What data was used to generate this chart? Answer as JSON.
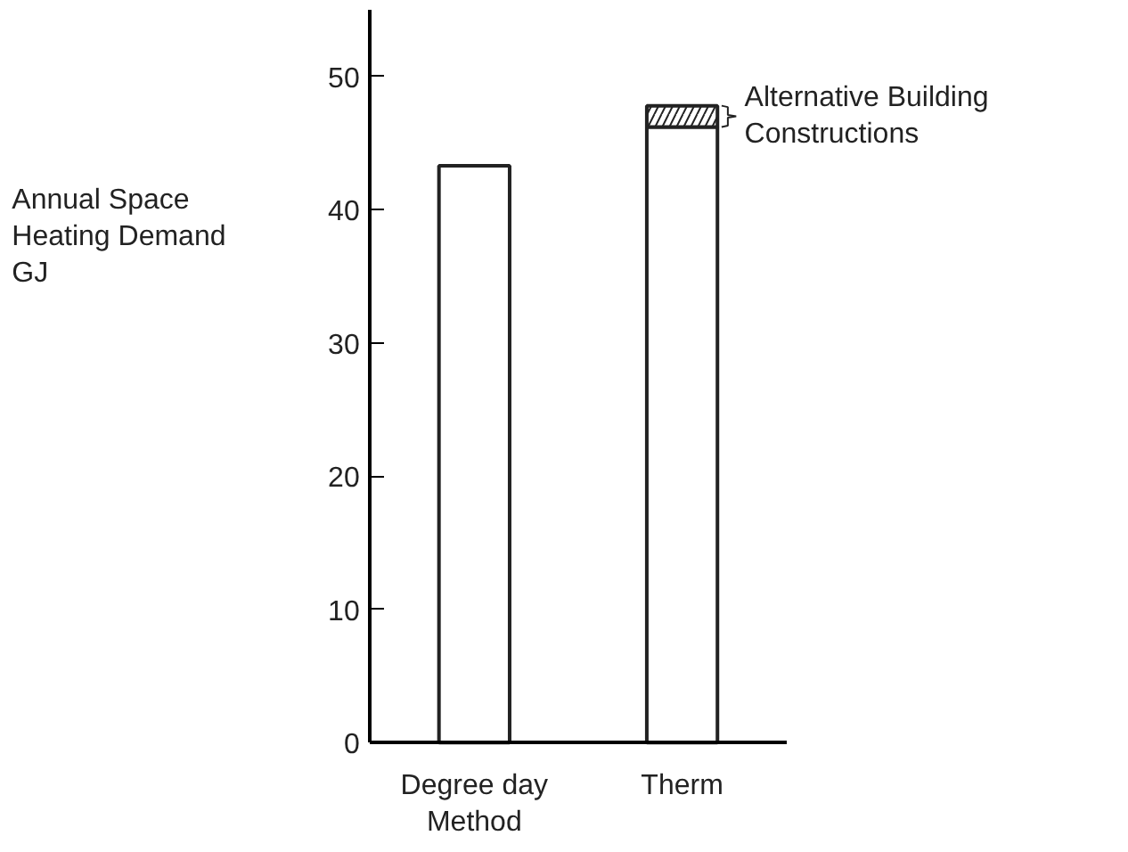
{
  "chart_data": {
    "type": "bar",
    "ylabel": "Annual Space\nHeating Demand\nGJ",
    "categories": [
      "Degree day\nMethod",
      "Therm"
    ],
    "stacked": true,
    "series": [
      {
        "color": "#ffffff",
        "values": [
          43.3,
          46.2
        ]
      },
      {
        "color": "#222222",
        "values": [
          null,
          1.6
        ]
      }
    ],
    "ylim": [
      0,
      55
    ],
    "yticks": [
      0,
      10,
      20,
      30,
      40,
      50
    ],
    "grid": false,
    "annotations": [
      {
        "text": "Alternative Building\nConstructions",
        "x": "Therm",
        "y": 47
      }
    ]
  }
}
